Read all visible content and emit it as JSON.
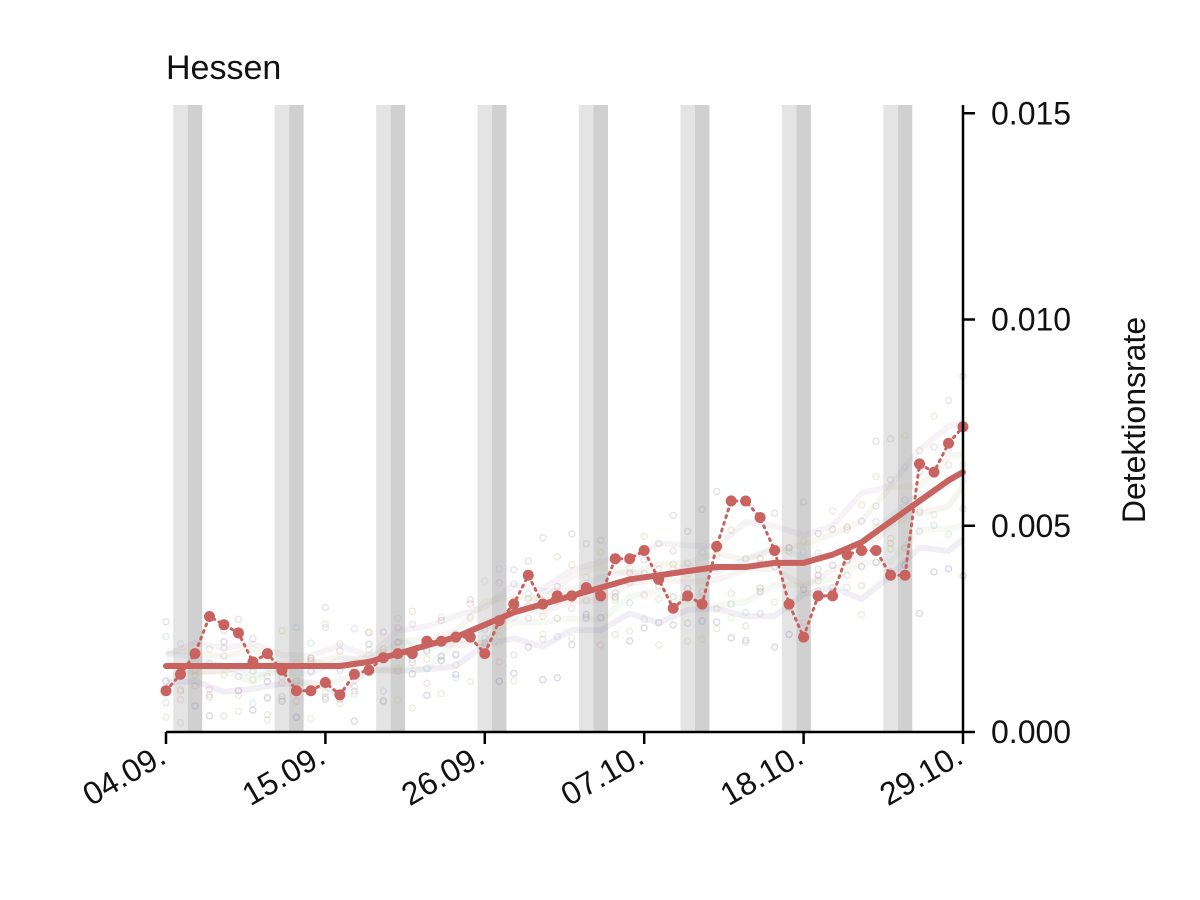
{
  "chart_data": {
    "type": "line",
    "title": "Hessen",
    "xlabel": "",
    "ylabel": "Detektionsrate",
    "x_tick_labels": [
      "04.09.",
      "15.09.",
      "26.09.",
      "07.10.",
      "18.10.",
      "29.10."
    ],
    "x_range_days": [
      0,
      55
    ],
    "y_ticks": [
      "0.000",
      "0.005",
      "0.010",
      "0.015"
    ],
    "ylim": [
      0.0,
      0.0152
    ],
    "y_axis_side": "right",
    "grid": false,
    "weekend_bands_start_day": [
      0.5,
      7.5,
      14.5,
      21.5,
      28.5,
      35.5,
      42.5,
      49.5
    ],
    "series": [
      {
        "color": "#c8635f",
        "style": "dotted-points",
        "x": [
          0,
          1,
          2,
          3,
          4,
          5,
          6,
          7,
          8,
          9,
          10,
          11,
          12,
          13,
          14,
          15,
          16,
          17,
          18,
          19,
          20,
          21,
          22,
          23,
          24,
          25,
          26,
          27,
          28,
          29,
          30,
          31,
          32,
          33,
          34,
          35,
          36,
          37,
          38,
          39,
          40,
          41,
          42,
          43,
          44,
          45,
          46,
          47,
          48,
          49,
          50,
          51,
          52,
          53,
          54,
          55
        ],
        "values": [
          0.001,
          0.0014,
          0.0019,
          0.0028,
          0.0026,
          0.0024,
          0.0017,
          0.0019,
          0.0015,
          0.001,
          0.001,
          0.0012,
          0.0009,
          0.0014,
          0.0015,
          0.0018,
          0.0019,
          0.0019,
          0.0022,
          0.0022,
          0.0023,
          0.0023,
          0.0019,
          0.0027,
          0.0031,
          0.0038,
          0.0031,
          0.0033,
          0.0033,
          0.0035,
          0.0033,
          0.0042,
          0.0042,
          0.0044,
          0.0037,
          0.003,
          0.0033,
          0.0031,
          0.0045,
          0.0056,
          0.0056,
          0.0052,
          0.0044,
          0.0031,
          0.0023,
          0.0033,
          0.0033,
          0.0043,
          0.0044,
          0.0044,
          0.0038,
          0.0038,
          0.0065,
          0.0063,
          0.007,
          0.0074
        ]
      },
      {
        "color": "#c8635f",
        "style": "smooth-trend",
        "x": [
          0,
          2,
          4,
          6,
          8,
          10,
          12,
          14,
          16,
          18,
          20,
          22,
          24,
          26,
          28,
          30,
          32,
          34,
          36,
          38,
          40,
          42,
          44,
          46,
          48,
          50,
          52,
          54,
          55
        ],
        "values": [
          0.0016,
          0.0016,
          0.0016,
          0.0016,
          0.0016,
          0.0016,
          0.0016,
          0.0017,
          0.0019,
          0.0021,
          0.0023,
          0.0026,
          0.0029,
          0.0031,
          0.0033,
          0.0035,
          0.0037,
          0.0038,
          0.0039,
          0.004,
          0.004,
          0.0041,
          0.0041,
          0.0043,
          0.0046,
          0.0051,
          0.0056,
          0.0061,
          0.0063
        ]
      }
    ],
    "background_series_colors": [
      "#8a7fb0",
      "#b7c99a",
      "#c9a3a0",
      "#9fb8c9",
      "#c7b98a",
      "#b59ab5"
    ]
  }
}
